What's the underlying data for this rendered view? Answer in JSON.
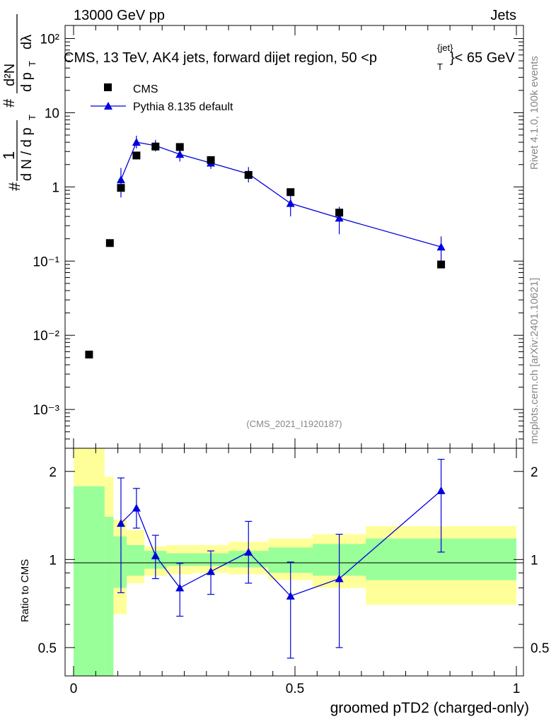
{
  "header": {
    "left": "13000 GeV pp",
    "right": "Jets",
    "plot_title": "CMS, 13 TeV, AK4 jets, forward dijet region, 50 <p",
    "title_sup": "{jet}",
    "title_sub": "T",
    "title_suffix": "}< 65 GeV",
    "analysis_id": "(CMS_2021_I1920187)"
  },
  "side": {
    "rivet": "Rivet 4.1.0,  100k events",
    "mcplots": "mcplots.cern.ch [arXiv:2401.10621]"
  },
  "legend": {
    "data": "CMS",
    "mc": "Pythia 8.135 default"
  },
  "main_axis": {
    "ylabel": {
      "hash": "#",
      "frac_num": "1",
      "frac_den": "d N / d p",
      "sub_T": "T",
      "hash2": "#",
      "num2": "d²N",
      "den2": "d p",
      "den2_lambda": "dλ"
    },
    "tick_labels": [
      "10⁻³",
      "10⁻²",
      "10⁻¹",
      "1",
      "10",
      "10²"
    ]
  },
  "ratio_axis": {
    "ylabel": "Ratio to CMS",
    "tick_labels": [
      "0.5",
      "1",
      "2"
    ],
    "xlabel": "groomed pTD2 (charged-only)",
    "x_tick_labels": [
      "0",
      "0.5",
      "1"
    ]
  },
  "colors": {
    "mc": "#0000dd",
    "band_inner": "#99ff99",
    "band_outer": "#ffff99",
    "data": "#000000"
  },
  "chart_data": {
    "type": "scatter",
    "title": "CMS, 13 TeV, AK4 jets, forward dijet region, 50 < pT{jet} < 65 GeV",
    "xlabel": "groomed pTD2 (charged-only)",
    "ylabel": "1/(dN/dpT) d²N/(dpT dλ)",
    "xlim": [
      0,
      1
    ],
    "ylim_main": [
      0.0003,
      150
    ],
    "ylim_ratio": [
      0.4,
      2.4
    ],
    "yscale": "log",
    "data_points": [
      {
        "x": 0.035,
        "y": 0.0055
      },
      {
        "x": 0.082,
        "y": 0.175
      },
      {
        "x": 0.107,
        "y": 0.97
      },
      {
        "x": 0.142,
        "y": 2.65
      },
      {
        "x": 0.185,
        "y": 3.5
      },
      {
        "x": 0.24,
        "y": 3.45
      },
      {
        "x": 0.31,
        "y": 2.3
      },
      {
        "x": 0.395,
        "y": 1.45
      },
      {
        "x": 0.49,
        "y": 0.85
      },
      {
        "x": 0.6,
        "y": 0.45
      },
      {
        "x": 0.83,
        "y": 0.09
      }
    ],
    "mc_points": [
      {
        "x": 0.107,
        "y": 1.25,
        "lo": 0.72,
        "hi": 1.8
      },
      {
        "x": 0.142,
        "y": 4.0,
        "lo": 3.3,
        "hi": 4.9
      },
      {
        "x": 0.185,
        "y": 3.6,
        "lo": 3.0,
        "hi": 4.3
      },
      {
        "x": 0.24,
        "y": 2.75,
        "lo": 2.2,
        "hi": 3.35
      },
      {
        "x": 0.31,
        "y": 2.1,
        "lo": 1.75,
        "hi": 2.45
      },
      {
        "x": 0.395,
        "y": 1.5,
        "lo": 1.15,
        "hi": 1.85
      },
      {
        "x": 0.49,
        "y": 0.6,
        "lo": 0.4,
        "hi": 0.82
      },
      {
        "x": 0.6,
        "y": 0.38,
        "lo": 0.23,
        "hi": 0.54
      },
      {
        "x": 0.83,
        "y": 0.155,
        "lo": 0.1,
        "hi": 0.215
      }
    ],
    "ratio_points": [
      {
        "x": 0.107,
        "y": 1.33,
        "lo": 0.77,
        "hi": 1.9
      },
      {
        "x": 0.142,
        "y": 1.5,
        "lo": 1.28,
        "hi": 1.75
      },
      {
        "x": 0.185,
        "y": 1.03,
        "lo": 0.86,
        "hi": 1.21
      },
      {
        "x": 0.24,
        "y": 0.8,
        "lo": 0.64,
        "hi": 0.97
      },
      {
        "x": 0.31,
        "y": 0.91,
        "lo": 0.76,
        "hi": 1.07
      },
      {
        "x": 0.395,
        "y": 1.06,
        "lo": 0.83,
        "hi": 1.35
      },
      {
        "x": 0.49,
        "y": 0.75,
        "lo": 0.46,
        "hi": 0.98
      },
      {
        "x": 0.6,
        "y": 0.86,
        "lo": 0.5,
        "hi": 1.22
      },
      {
        "x": 0.83,
        "y": 1.72,
        "lo": 1.06,
        "hi": 2.2
      }
    ],
    "ratio_bands": [
      {
        "x0": 0.0,
        "x1": 0.07,
        "in_lo": 0.4,
        "in_hi": 1.78,
        "out_lo": 0.4,
        "out_hi": 2.4
      },
      {
        "x0": 0.07,
        "x1": 0.09,
        "in_lo": 0.4,
        "in_hi": 1.4,
        "out_lo": 0.4,
        "out_hi": 1.92
      },
      {
        "x0": 0.09,
        "x1": 0.12,
        "in_lo": 0.8,
        "in_hi": 1.2,
        "out_lo": 0.65,
        "out_hi": 1.37
      },
      {
        "x0": 0.12,
        "x1": 0.16,
        "in_lo": 0.88,
        "in_hi": 1.12,
        "out_lo": 0.83,
        "out_hi": 1.26
      },
      {
        "x0": 0.16,
        "x1": 0.21,
        "in_lo": 0.93,
        "in_hi": 1.07,
        "out_lo": 0.88,
        "out_hi": 1.11
      },
      {
        "x0": 0.21,
        "x1": 0.27,
        "in_lo": 0.95,
        "in_hi": 1.05,
        "out_lo": 0.89,
        "out_hi": 1.12
      },
      {
        "x0": 0.27,
        "x1": 0.35,
        "in_lo": 0.95,
        "in_hi": 1.05,
        "out_lo": 0.9,
        "out_hi": 1.12
      },
      {
        "x0": 0.35,
        "x1": 0.44,
        "in_lo": 0.94,
        "in_hi": 1.07,
        "out_lo": 0.89,
        "out_hi": 1.15
      },
      {
        "x0": 0.44,
        "x1": 0.54,
        "in_lo": 0.9,
        "in_hi": 1.1,
        "out_lo": 0.85,
        "out_hi": 1.18
      },
      {
        "x0": 0.54,
        "x1": 0.66,
        "in_lo": 0.88,
        "in_hi": 1.13,
        "out_lo": 0.8,
        "out_hi": 1.22
      },
      {
        "x0": 0.66,
        "x1": 1.0,
        "in_lo": 0.85,
        "in_hi": 1.18,
        "out_lo": 0.7,
        "out_hi": 1.3
      }
    ]
  }
}
